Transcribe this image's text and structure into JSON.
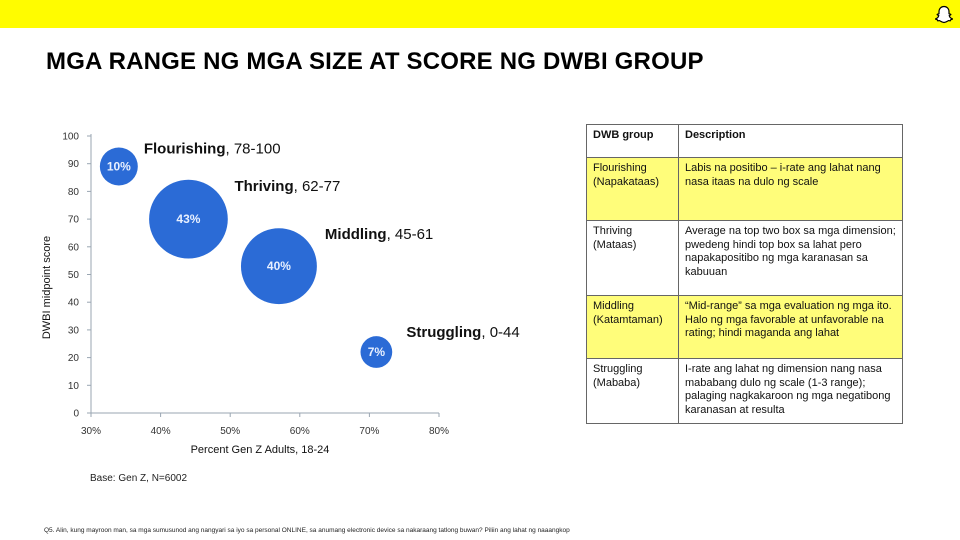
{
  "slide": {
    "title": "MGA RANGE NG MGA SIZE AT SCORE NG DWBI GROUP",
    "base_note": "Base: Gen Z, N=6002",
    "footnote": "Q5. Alin, kung mayroon man, sa mga sumusunod ang nangyari sa iyo sa personal ONLINE, sa anumang electronic device sa nakaraang tatlong buwan? Piliin ang lahat ng naaangkop",
    "brand_color": "#FFFC00",
    "brand_icon": "snapchat-ghost-icon"
  },
  "chart_data": {
    "type": "scatter",
    "xlabel": "Percent Gen Z Adults, 18-24",
    "ylabel": "DWBI midpoint score",
    "xlim": [
      30,
      80
    ],
    "ylim": [
      0,
      100
    ],
    "x_ticks": [
      "30%",
      "40%",
      "50%",
      "60%",
      "70%",
      "80%"
    ],
    "y_ticks": [
      "0",
      "10",
      "20",
      "30",
      "40",
      "50",
      "60",
      "70",
      "80",
      "90",
      "100"
    ],
    "bubble_color": "#2b6bd6",
    "grid": false,
    "points": [
      {
        "name": "Flourishing",
        "range": ", 78-100",
        "x": 34,
        "y": 89,
        "size_pct": 10,
        "label": "10%"
      },
      {
        "name": "Thriving",
        "range": ", 62-77",
        "x": 44,
        "y": 70,
        "size_pct": 43,
        "label": "43%"
      },
      {
        "name": "Middling",
        "range": ", 45-61",
        "x": 57,
        "y": 53,
        "size_pct": 40,
        "label": "40%"
      },
      {
        "name": "Struggling",
        "range": ", 0-44",
        "x": 71,
        "y": 22,
        "size_pct": 7,
        "label": "7%"
      }
    ]
  },
  "table": {
    "headers": [
      "DWB group",
      "Description"
    ],
    "rows": [
      {
        "group": "Flourishing (Napakataas)",
        "desc": "Labis na positibo – i-rate ang lahat nang nasa itaas na dulo ng scale",
        "highlight": true
      },
      {
        "group": "Thriving (Mataas)",
        "desc": "Average na top two box sa mga dimension; pwedeng hindi top box sa lahat pero napakapositibo ng mga karanasan sa kabuuan",
        "highlight": false
      },
      {
        "group": "Middling (Katamtaman)",
        "desc": "“Mid-range” sa mga evaluation ng mga ito. Halo ng mga favorable at unfavorable na rating; hindi maganda ang lahat",
        "highlight": true
      },
      {
        "group": "Struggling (Mababa)",
        "desc": "I-rate ang lahat ng dimension nang nasa mababang dulo ng scale (1-3 range); palaging nagkakaroon ng mga negatibong karanasan at resulta",
        "highlight": false
      }
    ]
  }
}
